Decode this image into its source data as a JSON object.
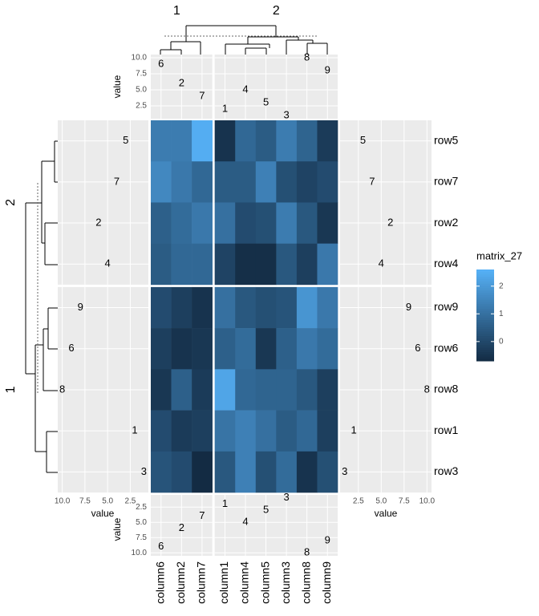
{
  "chart_data": {
    "type": "heatmap",
    "columns": [
      "column6",
      "column2",
      "column7",
      "column1",
      "column4",
      "column5",
      "column3",
      "column8",
      "column9"
    ],
    "column_split": [
      "1",
      "1",
      "1",
      "2",
      "2",
      "2",
      "2",
      "2",
      "2"
    ],
    "rows": [
      "row5",
      "row7",
      "row2",
      "row4",
      "row9",
      "row6",
      "row8",
      "row1",
      "row3"
    ],
    "row_split": [
      "2",
      "2",
      "2",
      "2",
      "1",
      "1",
      "1",
      "1",
      "1"
    ],
    "values": [
      [
        1.3,
        1.3,
        2.5,
        -0.5,
        0.8,
        0.5,
        1.3,
        0.7,
        -0.3
      ],
      [
        1.6,
        1.2,
        0.8,
        0.5,
        0.5,
        1.4,
        0.2,
        -0.1,
        0.1
      ],
      [
        0.6,
        0.9,
        1.2,
        1.0,
        0.1,
        0.2,
        1.3,
        0.4,
        -0.4
      ],
      [
        0.5,
        0.8,
        0.8,
        -0.1,
        -0.6,
        -0.6,
        0.4,
        -0.2,
        1.2
      ],
      [
        0.1,
        -0.2,
        -0.5,
        1.0,
        0.4,
        0.2,
        0.3,
        1.9,
        1.2
      ],
      [
        -0.2,
        -0.5,
        -0.4,
        0.6,
        0.9,
        -0.4,
        0.6,
        1.2,
        0.9
      ],
      [
        -0.4,
        0.6,
        -0.3,
        2.3,
        0.8,
        0.7,
        0.7,
        0.4,
        -0.2
      ],
      [
        0.1,
        -0.3,
        -0.2,
        1.1,
        1.4,
        1.0,
        0.5,
        0.8,
        -0.2
      ],
      [
        0.3,
        0.1,
        -0.7,
        0.4,
        1.4,
        0.2,
        0.9,
        -0.5,
        0.2
      ]
    ],
    "colorscale": {
      "low": "#132B43",
      "high": "#56B1F7"
    },
    "legend": {
      "title": "matrix_27",
      "limits": [
        -0.7,
        2.6
      ],
      "ticks": [
        0,
        1,
        2
      ]
    },
    "column_annotation": {
      "axis_label": "value",
      "labels": [
        "6",
        "2",
        "7",
        "1",
        "4",
        "5",
        "3",
        "8",
        "9"
      ],
      "values": [
        9,
        6,
        4,
        2,
        5,
        3,
        1,
        10,
        8
      ],
      "lim": [
        0.5,
        10.5
      ],
      "ticks": [
        2.5,
        {
          "value": 5,
          "label": "5.0"
        },
        {
          "value": 7.5,
          "label": "7.5"
        },
        {
          "value": 10,
          "label": "10.0"
        }
      ]
    },
    "row_annotation": {
      "axis_label": "value",
      "labels": [
        "5",
        "7",
        "2",
        "4",
        "9",
        "6",
        "8",
        "1",
        "3"
      ],
      "values": [
        3,
        4,
        6,
        5,
        8,
        9,
        10,
        2,
        1
      ],
      "lim": [
        0.5,
        10.5
      ],
      "ticks": [
        2.5,
        {
          "value": 5,
          "label": "5.0"
        },
        {
          "value": 7.5,
          "label": "7.5"
        },
        {
          "value": 10,
          "label": "10.0"
        }
      ]
    }
  }
}
